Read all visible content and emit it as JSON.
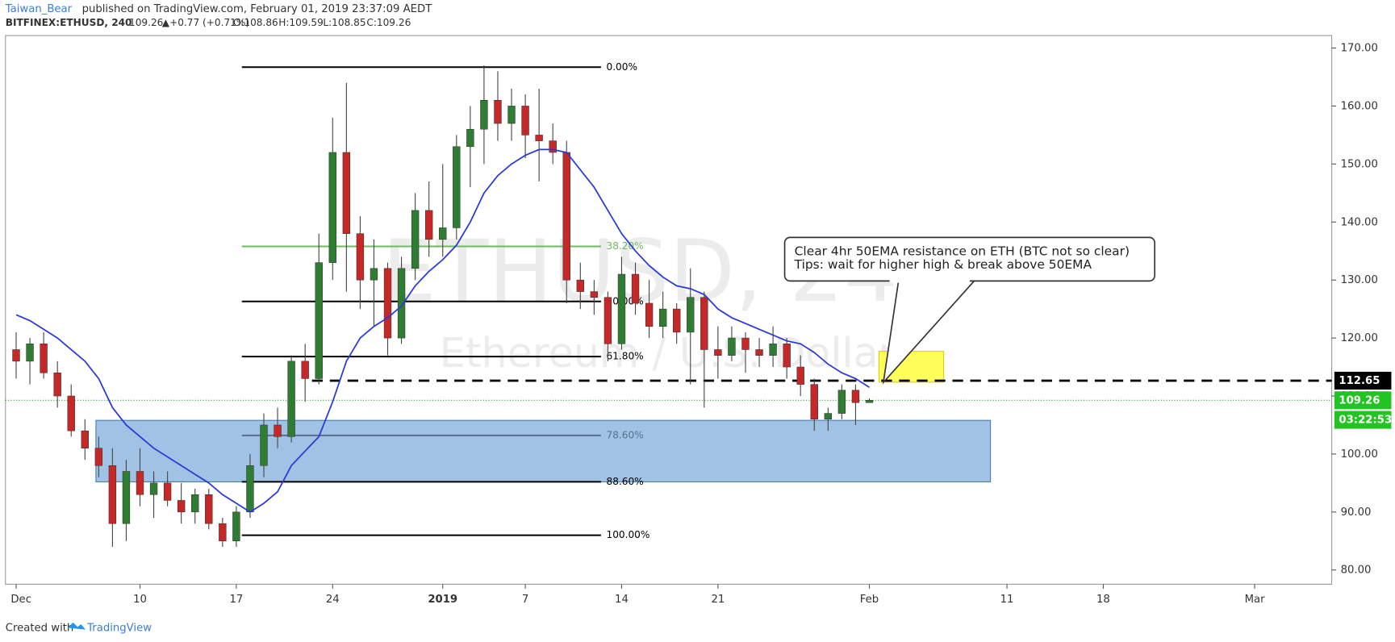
{
  "header": {
    "author": "Taiwan_Bear",
    "published": "published on TradingView.com, February 01, 2019 23:37:09 AEDT",
    "symbol": "BITFINEX:ETHUSD, 240",
    "last": "109.26",
    "change": "▲+0.77 (+0.71%)",
    "open": "O:108.86",
    "high": "H:109.59",
    "low": "L:108.85",
    "close": "C:109.26"
  },
  "chart_data": {
    "type": "candlestick",
    "watermark": "ETHUSD, 240",
    "watermark_sub": "Ethereum / U.S. Dollar",
    "x": [
      0,
      1,
      2,
      3,
      4,
      5,
      6,
      7,
      8,
      9,
      10,
      11,
      12,
      13,
      14,
      15,
      16,
      17,
      18,
      19,
      20,
      21,
      22,
      23,
      24,
      25,
      26,
      27,
      28,
      29,
      30,
      31,
      32,
      33,
      34,
      35,
      36,
      37,
      38,
      39,
      40,
      41,
      42,
      43,
      44,
      45,
      46,
      47,
      48,
      49,
      50,
      51,
      52,
      53,
      54,
      55,
      56,
      57,
      58,
      59,
      60,
      61,
      62
    ],
    "open": [
      118,
      116,
      119,
      114,
      110,
      104,
      101,
      98,
      88,
      97,
      93,
      95,
      92,
      90,
      93,
      88,
      85,
      90,
      98,
      105,
      103,
      116,
      113,
      133,
      152,
      138,
      130,
      132,
      120,
      132,
      142,
      137,
      139,
      153,
      156,
      161,
      157,
      160,
      155,
      154,
      152,
      130,
      128,
      127,
      119,
      131,
      126,
      122,
      125,
      121,
      127,
      118,
      117,
      120,
      118,
      117,
      119,
      115,
      112,
      106,
      107,
      111,
      108.86
    ],
    "high": [
      121,
      120,
      121,
      116,
      112,
      106,
      103,
      101,
      99,
      101,
      97,
      97,
      95,
      94,
      94,
      89,
      91,
      100,
      107,
      108,
      117,
      119,
      138,
      158,
      164,
      141,
      137,
      133,
      134,
      145,
      147,
      150,
      155,
      160,
      167,
      166,
      163,
      162,
      163,
      157,
      154,
      133,
      130,
      128,
      134,
      133,
      130,
      128,
      126,
      132,
      128,
      122,
      122,
      121,
      120,
      122,
      120,
      117,
      113,
      108,
      112,
      112,
      109.59
    ],
    "low": [
      113,
      112,
      113,
      108,
      103,
      99,
      96,
      84,
      85,
      91,
      89,
      91,
      88,
      88,
      87,
      84,
      84,
      89,
      96,
      101,
      102,
      109,
      112,
      130,
      128,
      125,
      122,
      117,
      119,
      130,
      134,
      134,
      137,
      146,
      150,
      154,
      154,
      151,
      147,
      150,
      126,
      125,
      124,
      116,
      118,
      124,
      120,
      120,
      119,
      112,
      108,
      113,
      116,
      114,
      115,
      115,
      113,
      110,
      104,
      104,
      106,
      105,
      108.85
    ],
    "close": [
      116,
      119,
      114,
      110,
      104,
      101,
      98,
      88,
      97,
      93,
      95,
      92,
      90,
      93,
      88,
      85,
      90,
      98,
      105,
      103,
      116,
      113,
      133,
      152,
      138,
      130,
      132,
      120,
      132,
      142,
      137,
      139,
      153,
      156,
      161,
      157,
      160,
      155,
      154,
      152,
      130,
      128,
      127,
      119,
      131,
      126,
      122,
      125,
      121,
      127,
      118,
      117,
      120,
      118,
      117,
      119,
      115,
      112,
      106,
      107,
      111,
      108.86,
      109.26
    ],
    "up_color": "#2f7d32",
    "down_color": "#c62828",
    "ema": {
      "color": "#2a3ad8",
      "values": [
        124,
        123,
        121.5,
        120,
        118,
        116,
        113,
        108,
        105,
        103,
        101,
        99.5,
        98,
        96.5,
        95,
        93,
        91.5,
        90,
        91.5,
        93.5,
        98,
        100.5,
        103,
        109,
        116,
        120,
        122,
        123.5,
        125.5,
        129,
        131.5,
        133.5,
        136,
        140,
        145,
        148,
        150,
        151.5,
        152.5,
        152.5,
        152,
        149,
        146,
        142,
        138,
        135,
        132.5,
        130.5,
        129,
        128.5,
        127.5,
        125,
        123.5,
        122.5,
        121.5,
        120.5,
        119.5,
        119,
        117.5,
        115.5,
        114,
        113,
        111.5
      ]
    },
    "fib": {
      "start": 16.4,
      "end": 42.5,
      "levels": [
        {
          "label": "0.00%",
          "price": 166.7,
          "color": "#000"
        },
        {
          "label": "38.20%",
          "price": 135.8,
          "color": "#6dbb5f"
        },
        {
          "label": "50.00%",
          "price": 126.3,
          "color": "#000"
        },
        {
          "label": "61.80%",
          "price": 116.8,
          "color": "#000"
        },
        {
          "label": "78.60%",
          "price": 103.2,
          "color": "#5a6f8c"
        },
        {
          "label": "88.60%",
          "price": 95.2,
          "color": "#000"
        },
        {
          "label": "100.00%",
          "price": 86.0,
          "color": "#000"
        }
      ]
    },
    "zone": {
      "start": 5.8,
      "end": 70.8,
      "top": 105.8,
      "bottom": 95.2,
      "color": "#8fb8e0"
    },
    "target": {
      "start": 62.7,
      "end": 67.4,
      "top": 117.7,
      "bottom": 112.4,
      "color": "#ffff33"
    },
    "resistance": {
      "start": 21.5,
      "price": 112.65
    },
    "last_price": 109.26,
    "countdown": "03:22:53",
    "callout": [
      "Clear 4hr 50EMA resistance on ETH (BTC not so clear)",
      "Tips: wait for higher high & break above 50EMA"
    ],
    "xlim": [
      -0.776,
      95.6
    ],
    "ylim": [
      77.55,
      172.15
    ],
    "xticks": [
      {
        "value": 0,
        "label": "Dec"
      },
      {
        "value": 9,
        "label": "10"
      },
      {
        "value": 16,
        "label": "17"
      },
      {
        "value": 23,
        "label": "24"
      },
      {
        "value": 31,
        "label": "2019"
      },
      {
        "value": 37,
        "label": "7"
      },
      {
        "value": 44,
        "label": "14"
      },
      {
        "value": 51,
        "label": "21"
      },
      {
        "value": 62,
        "label": "Feb"
      },
      {
        "value": 72,
        "label": "11"
      },
      {
        "value": 79,
        "label": "18"
      },
      {
        "value": 90,
        "label": "Mar"
      }
    ],
    "yticks": [
      {
        "value": 80,
        "label": "80.00"
      },
      {
        "value": 90,
        "label": "90.00"
      },
      {
        "value": 100,
        "label": "100.00"
      },
      {
        "value": 110,
        "label": "110.00"
      },
      {
        "value": 120,
        "label": "120.00"
      },
      {
        "value": 130,
        "label": "130.00"
      },
      {
        "value": 140,
        "label": "140.00"
      },
      {
        "value": 150,
        "label": "150.00"
      },
      {
        "value": 160,
        "label": "160.00"
      },
      {
        "value": 170,
        "label": "170.00"
      }
    ]
  },
  "footer": {
    "created": "Created with",
    "brand": "TradingView"
  }
}
